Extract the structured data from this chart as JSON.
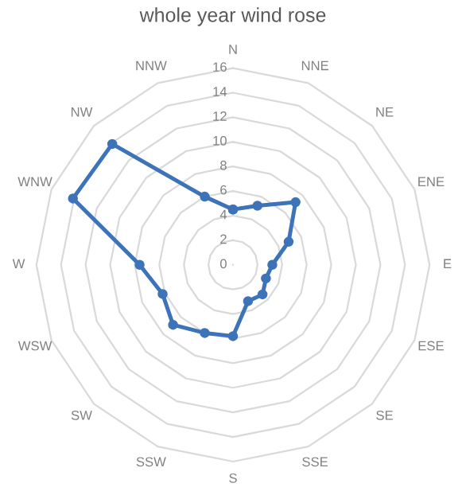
{
  "chart_data": {
    "type": "radar",
    "title": "whole year wind rose",
    "categories": [
      "N",
      "NNE",
      "NE",
      "ENE",
      "E",
      "ESE",
      "SE",
      "SSE",
      "S",
      "SSW",
      "SW",
      "WSW",
      "W",
      "WNW",
      "NW",
      "NNW"
    ],
    "series": [
      {
        "color": "#3d73b9",
        "values": [
          4.5,
          5.2,
          7.2,
          4.9,
          3.2,
          2.9,
          3.4,
          3.2,
          5.8,
          6.0,
          6.9,
          6.2,
          7.6,
          14.1,
          13.9,
          6.0
        ]
      }
    ],
    "ylim": [
      0,
      16
    ],
    "yticks": [
      0,
      2,
      4,
      6,
      8,
      10,
      12,
      14,
      16
    ],
    "grid": true,
    "marker": "circle"
  }
}
